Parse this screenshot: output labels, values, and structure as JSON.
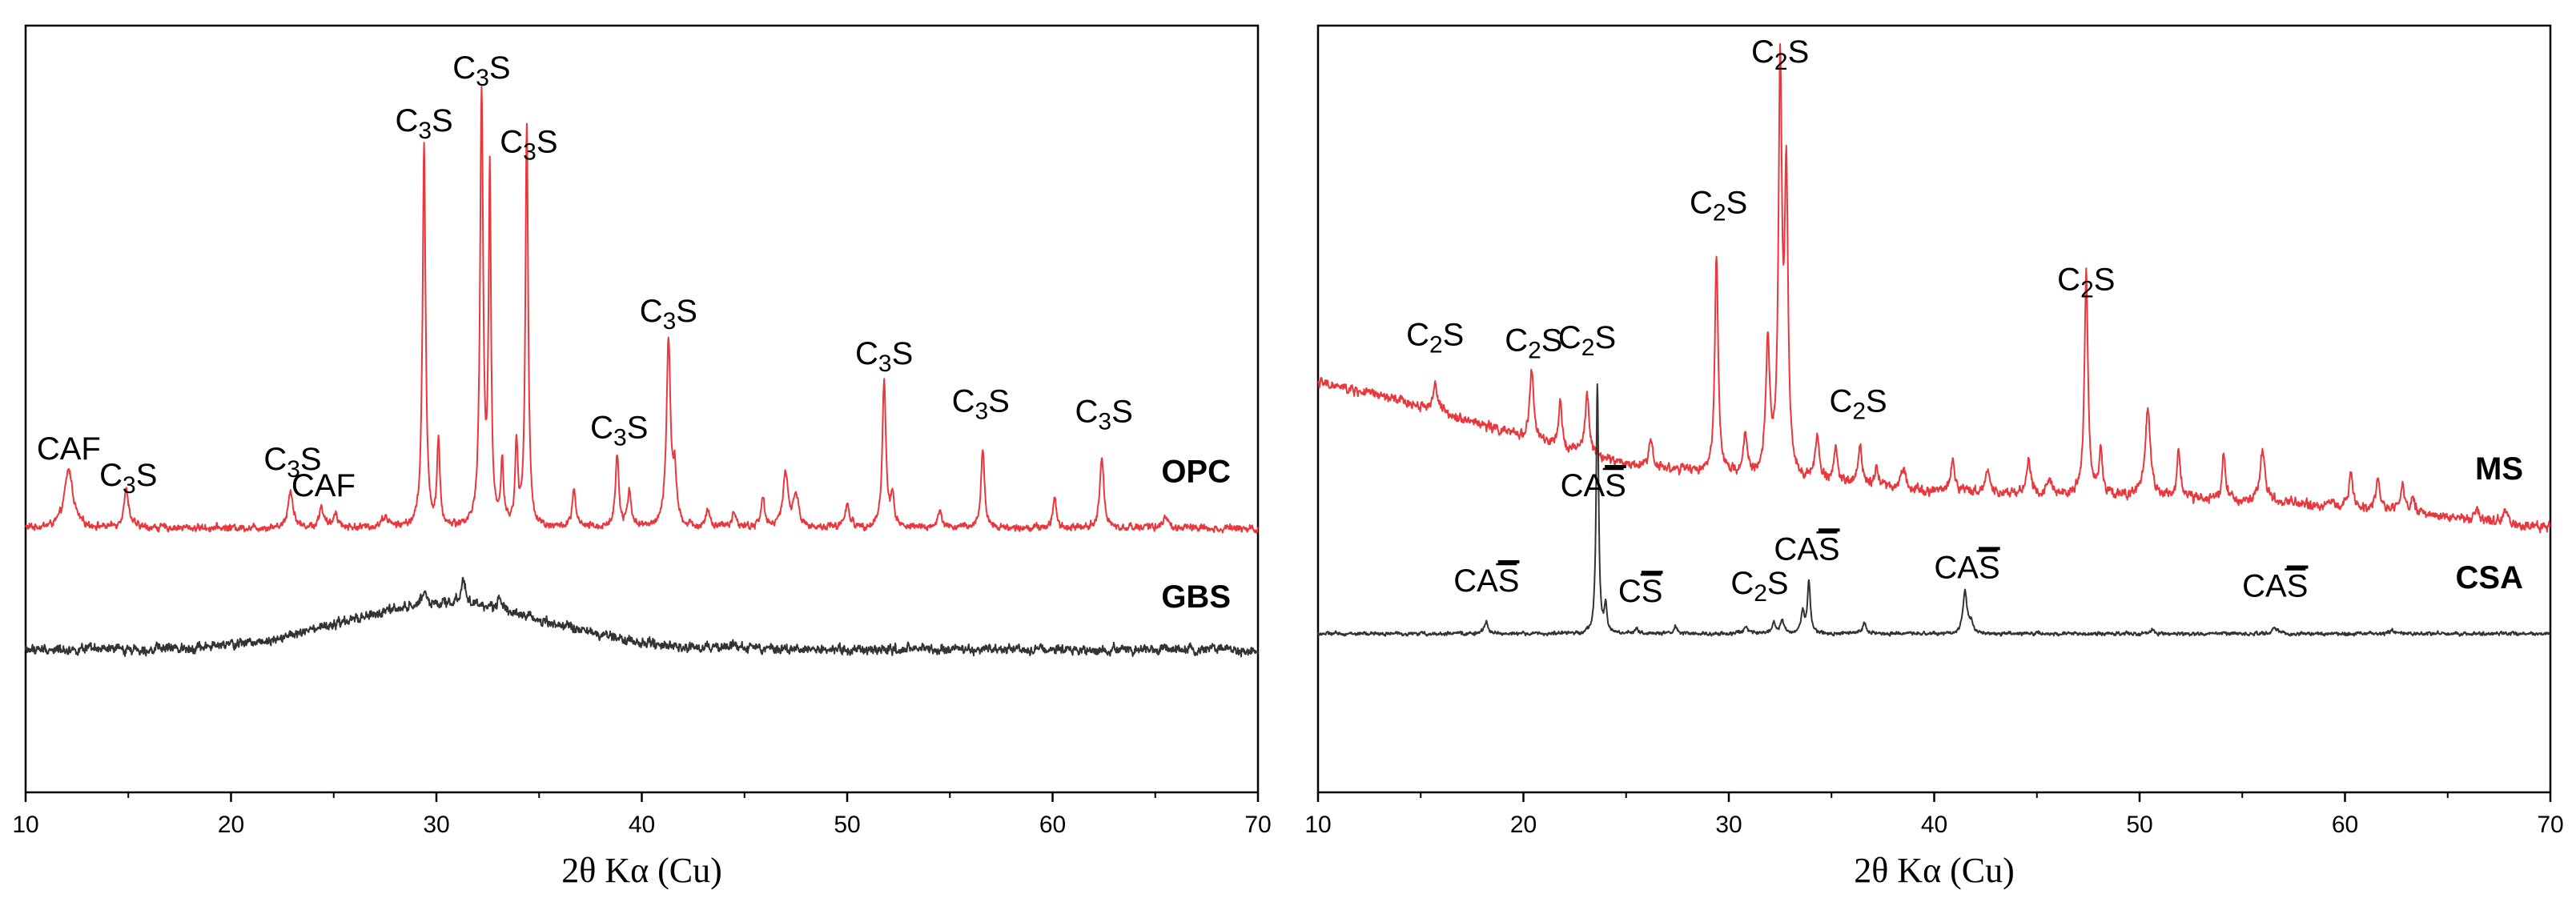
{
  "chart_data": [
    {
      "type": "line",
      "xlabel": "2θ Kα (Cu)",
      "xlim": [
        10,
        70
      ],
      "xticks": [
        "10",
        "20",
        "30",
        "40",
        "50",
        "60",
        "70"
      ],
      "series": [
        {
          "name": "OPC",
          "color": "#e8383d",
          "baseline": 0.5,
          "noise": 0.006,
          "peaks": [
            [
              12.1,
              0.11,
              0.25
            ],
            [
              14.9,
              0.07,
              0.15
            ],
            [
              22.9,
              0.07,
              0.15
            ],
            [
              24.4,
              0.04,
              0.12
            ],
            [
              25.1,
              0.03,
              0.12
            ],
            [
              27.5,
              0.02,
              0.2
            ],
            [
              29.4,
              0.72,
              0.09
            ],
            [
              30.1,
              0.16,
              0.08
            ],
            [
              32.2,
              0.81,
              0.09
            ],
            [
              32.6,
              0.66,
              0.07
            ],
            [
              33.2,
              0.12,
              0.08
            ],
            [
              33.9,
              0.15,
              0.08
            ],
            [
              34.4,
              0.76,
              0.08
            ],
            [
              36.7,
              0.07,
              0.1
            ],
            [
              38.8,
              0.14,
              0.1
            ],
            [
              39.4,
              0.07,
              0.1
            ],
            [
              41.3,
              0.35,
              0.12
            ],
            [
              41.6,
              0.09,
              0.1
            ],
            [
              43.2,
              0.03,
              0.12
            ],
            [
              44.5,
              0.03,
              0.12
            ],
            [
              45.9,
              0.06,
              0.1
            ],
            [
              47.0,
              0.1,
              0.15
            ],
            [
              47.5,
              0.06,
              0.15
            ],
            [
              50.0,
              0.04,
              0.15
            ],
            [
              51.8,
              0.28,
              0.1
            ],
            [
              52.2,
              0.06,
              0.1
            ],
            [
              54.5,
              0.03,
              0.12
            ],
            [
              56.6,
              0.15,
              0.1
            ],
            [
              60.1,
              0.06,
              0.1
            ],
            [
              62.4,
              0.13,
              0.12
            ],
            [
              65.5,
              0.02,
              0.15
            ]
          ]
        },
        {
          "name": "GBS",
          "color": "#333333",
          "baseline": 0.27,
          "noise": 0.008,
          "hump": [
            30.5,
            0.085,
            5.0
          ],
          "peaks": [
            [
              29.4,
              0.03,
              0.15
            ],
            [
              31.3,
              0.05,
              0.15
            ],
            [
              33.1,
              0.025,
              0.15
            ],
            [
              44.5,
              0.01,
              0.2
            ]
          ]
        }
      ],
      "annotations": [
        {
          "x": 12.1,
          "text": "CAF",
          "y": 0.63
        },
        {
          "x": 15.0,
          "text": "C3S",
          "y": 0.58
        },
        {
          "x": 23.0,
          "text": "C3S",
          "y": 0.61
        },
        {
          "x": 24.5,
          "text": "CAF",
          "y": 0.56
        },
        {
          "x": 29.4,
          "text": "C3S",
          "y": 1.25
        },
        {
          "x": 32.2,
          "text": "C3S",
          "y": 1.35
        },
        {
          "x": 34.5,
          "text": "C3S",
          "y": 1.21
        },
        {
          "x": 38.9,
          "text": "C3S",
          "y": 0.67
        },
        {
          "x": 41.3,
          "text": "C3S",
          "y": 0.89
        },
        {
          "x": 51.8,
          "text": "C3S",
          "y": 0.81
        },
        {
          "x": 56.5,
          "text": "C3S",
          "y": 0.72
        },
        {
          "x": 62.5,
          "text": "C3S",
          "y": 0.7
        }
      ]
    },
    {
      "type": "line",
      "xlabel": "2θ Kα (Cu)",
      "xlim": [
        10,
        70
      ],
      "xticks": [
        "10",
        "20",
        "30",
        "40",
        "50",
        "60",
        "70"
      ],
      "series": [
        {
          "name": "MS",
          "color": "#e8383d",
          "baseline_points": [
            [
              10,
              0.775
            ],
            [
              13,
              0.75
            ],
            [
              16,
              0.72
            ],
            [
              20,
              0.67
            ],
            [
              25,
              0.62
            ],
            [
              30,
              0.6
            ],
            [
              40,
              0.57
            ],
            [
              50,
              0.56
            ],
            [
              60,
              0.54
            ],
            [
              70,
              0.5
            ]
          ],
          "noise": 0.008,
          "peaks": [
            [
              15.7,
              0.05,
              0.12
            ],
            [
              20.4,
              0.13,
              0.12
            ],
            [
              21.8,
              0.08,
              0.1
            ],
            [
              23.1,
              0.11,
              0.12
            ],
            [
              26.2,
              0.05,
              0.12
            ],
            [
              29.4,
              0.4,
              0.1
            ],
            [
              30.8,
              0.08,
              0.1
            ],
            [
              31.9,
              0.24,
              0.12
            ],
            [
              32.5,
              0.75,
              0.1
            ],
            [
              32.8,
              0.55,
              0.1
            ],
            [
              34.3,
              0.08,
              0.12
            ],
            [
              35.2,
              0.06,
              0.12
            ],
            [
              36.4,
              0.07,
              0.12
            ],
            [
              37.2,
              0.04,
              0.1
            ],
            [
              38.5,
              0.04,
              0.12
            ],
            [
              40.9,
              0.06,
              0.12
            ],
            [
              42.6,
              0.04,
              0.12
            ],
            [
              44.6,
              0.06,
              0.12
            ],
            [
              45.6,
              0.03,
              0.12
            ],
            [
              47.4,
              0.42,
              0.1
            ],
            [
              48.1,
              0.08,
              0.1
            ],
            [
              50.4,
              0.16,
              0.15
            ],
            [
              51.9,
              0.09,
              0.1
            ],
            [
              54.1,
              0.09,
              0.1
            ],
            [
              56.0,
              0.1,
              0.15
            ],
            [
              60.3,
              0.06,
              0.12
            ],
            [
              61.6,
              0.05,
              0.12
            ],
            [
              62.8,
              0.05,
              0.12
            ],
            [
              63.3,
              0.03,
              0.12
            ],
            [
              66.4,
              0.02,
              0.12
            ],
            [
              67.8,
              0.02,
              0.15
            ]
          ]
        },
        {
          "name": "CSA",
          "color": "#333333",
          "baseline": 0.3,
          "noise": 0.003,
          "peaks": [
            [
              18.2,
              0.025,
              0.1
            ],
            [
              23.6,
              0.47,
              0.07
            ],
            [
              24.0,
              0.05,
              0.07
            ],
            [
              25.5,
              0.012,
              0.08
            ],
            [
              27.4,
              0.015,
              0.08
            ],
            [
              30.8,
              0.015,
              0.1
            ],
            [
              32.2,
              0.02,
              0.1
            ],
            [
              32.6,
              0.025,
              0.1
            ],
            [
              33.6,
              0.04,
              0.1
            ],
            [
              33.9,
              0.1,
              0.08
            ],
            [
              36.6,
              0.02,
              0.12
            ],
            [
              41.5,
              0.08,
              0.12
            ],
            [
              41.8,
              0.02,
              0.1
            ],
            [
              50.6,
              0.008,
              0.1
            ],
            [
              56.6,
              0.012,
              0.12
            ],
            [
              62.3,
              0.008,
              0.1
            ]
          ]
        }
      ],
      "annotations": [
        {
          "x": 15.7,
          "text": "C2S",
          "y": 0.845
        },
        {
          "x": 20.5,
          "text": "C2S",
          "y": 0.835
        },
        {
          "x": 23.1,
          "text": "C2S",
          "y": 0.84
        },
        {
          "x": 29.5,
          "text": "C2S",
          "y": 1.095
        },
        {
          "x": 32.5,
          "text": "C2S",
          "y": 1.38
        },
        {
          "x": 36.3,
          "text": "C2S",
          "y": 0.72
        },
        {
          "x": 47.4,
          "text": "C2S",
          "y": 0.95
        },
        {
          "x": 23.4,
          "text": "CAS",
          "y": 0.56
        },
        {
          "x": 18.2,
          "text": "CAS",
          "y": 0.38
        },
        {
          "x": 25.7,
          "text": "CS",
          "y": 0.36
        },
        {
          "x": 31.5,
          "text": "C2S",
          "y": 0.375
        },
        {
          "x": 33.8,
          "text": "CAS",
          "y": 0.44
        },
        {
          "x": 41.6,
          "text": "CAS",
          "y": 0.405
        },
        {
          "x": 56.6,
          "text": "CAS",
          "y": 0.37
        }
      ]
    }
  ]
}
